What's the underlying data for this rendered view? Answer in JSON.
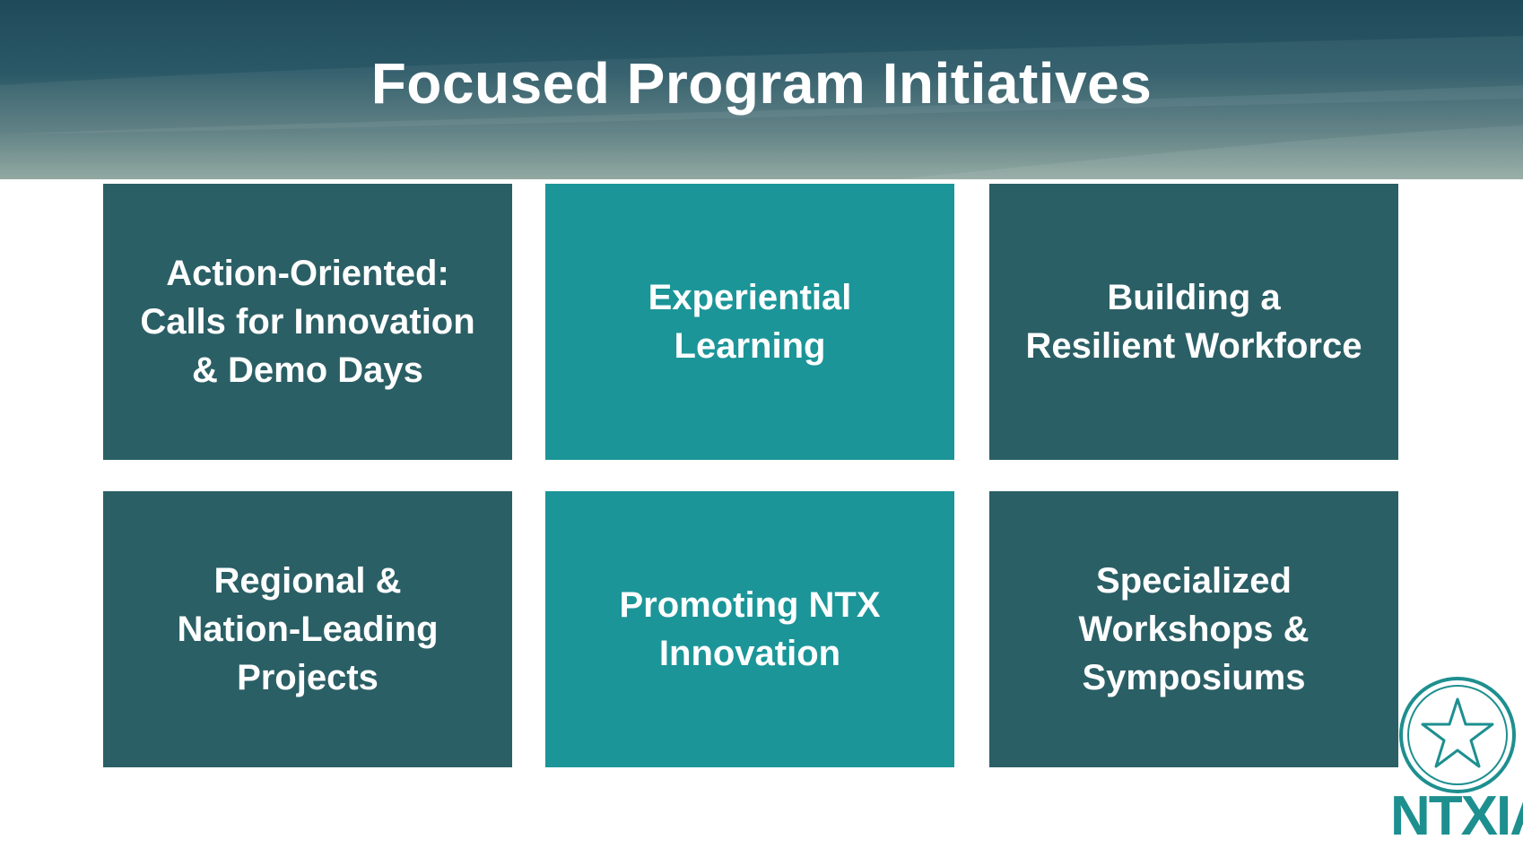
{
  "slide": {
    "title": "Focused Program Initiatives",
    "tiles": [
      {
        "label": "Action-Oriented:\nCalls for Innovation\n& Demo Days",
        "style": "dark"
      },
      {
        "label": "Experiential\nLearning",
        "style": "teal"
      },
      {
        "label": "Building a\nResilient Workforce",
        "style": "dark"
      },
      {
        "label": "Regional &\nNation-Leading\nProjects",
        "style": "dark"
      },
      {
        "label": "Promoting NTX\nInnovation",
        "style": "teal"
      },
      {
        "label": "Specialized\nWorkshops &\nSymposiums",
        "style": "dark"
      }
    ],
    "logo": {
      "wordmark": "NTXIA",
      "icon": "star-seal-icon"
    },
    "colors": {
      "tile_dark": "#2a5f65",
      "tile_teal": "#1b9598",
      "header_top": "#1f4a5a",
      "header_bottom": "#8aa39b",
      "logo": "#1e8f8f",
      "text": "#ffffff"
    }
  }
}
